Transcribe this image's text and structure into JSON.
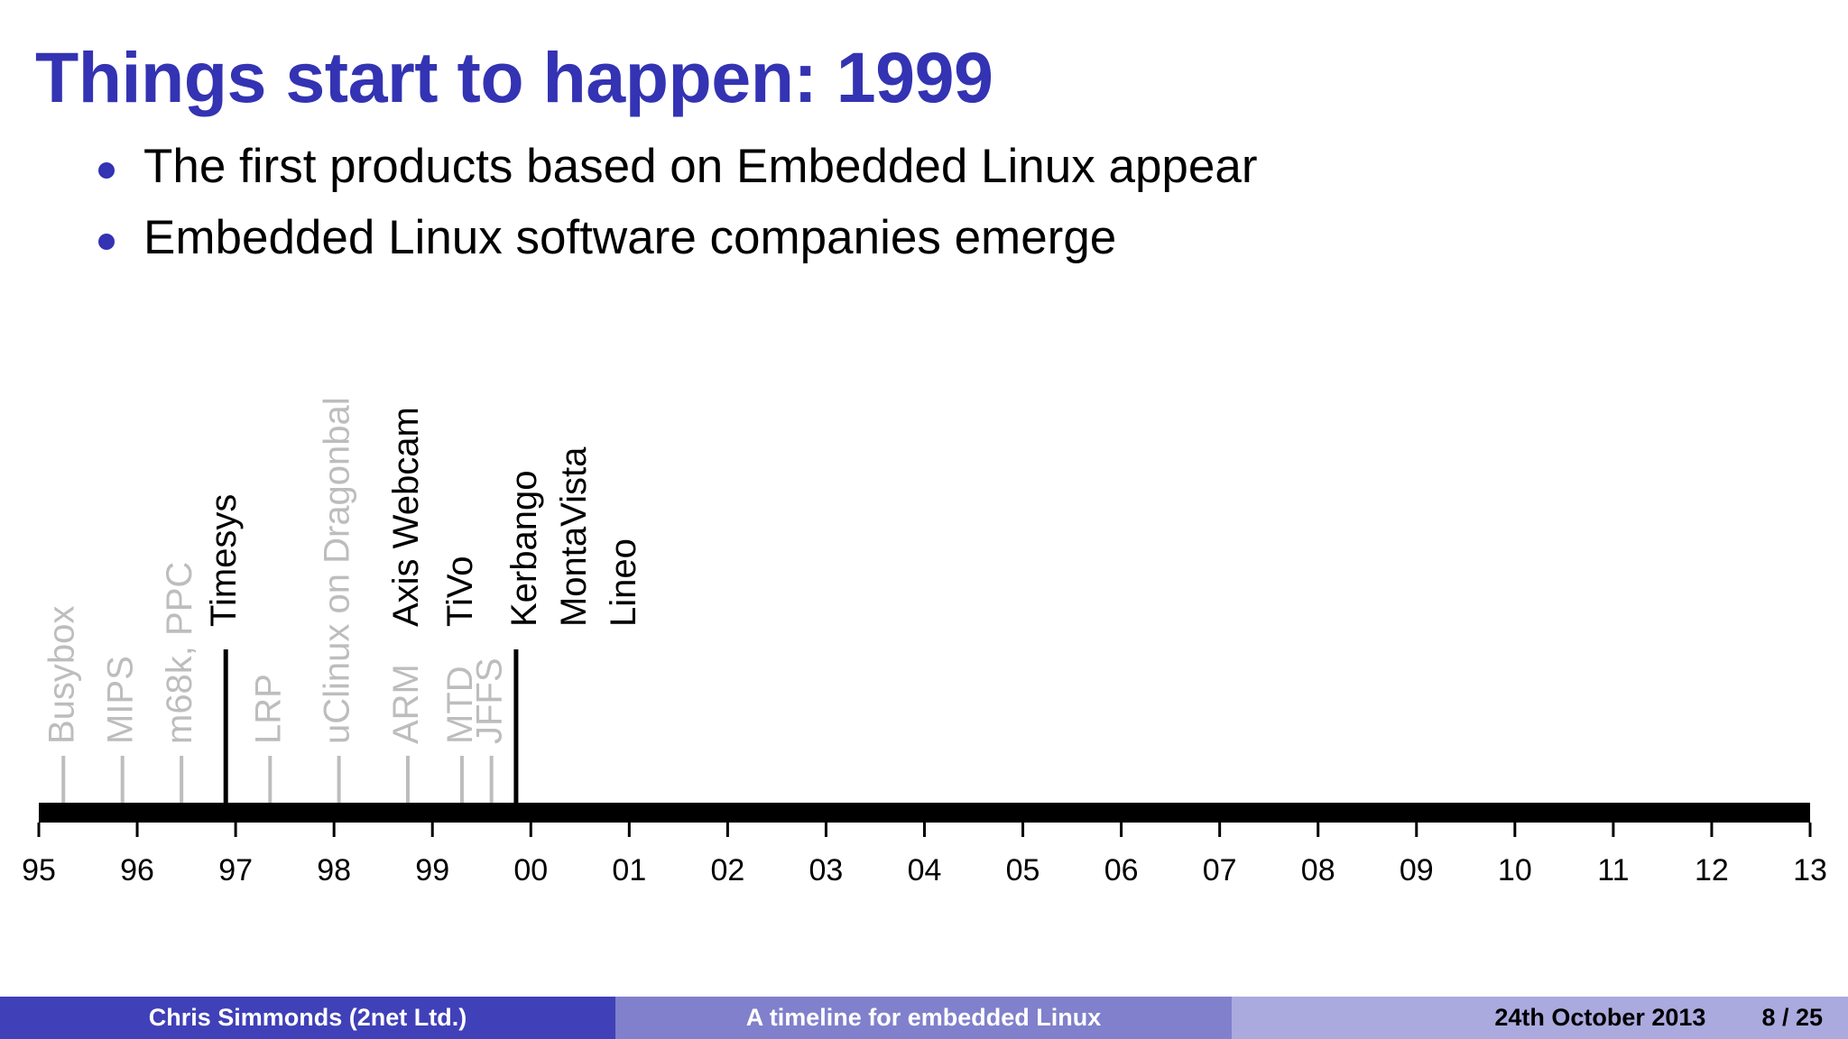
{
  "slide": {
    "title": "Things start to happen: 1999",
    "bullets": [
      "The first products based on Embedded Linux appear",
      "Embedded Linux software companies emerge"
    ]
  },
  "chart_data": {
    "type": "timeline",
    "x_range": [
      1995,
      2013
    ],
    "tick_labels": [
      "95",
      "96",
      "97",
      "98",
      "99",
      "00",
      "01",
      "02",
      "03",
      "04",
      "05",
      "06",
      "07",
      "08",
      "09",
      "10",
      "11",
      "12",
      "13"
    ],
    "events": [
      {
        "year": 1995.25,
        "labels": [
          "Busybox"
        ],
        "highlighted": false
      },
      {
        "year": 1995.85,
        "labels": [
          "MIPS"
        ],
        "highlighted": false
      },
      {
        "year": 1996.45,
        "labels": [
          "m68k, PPC"
        ],
        "highlighted": false
      },
      {
        "year": 1996.9,
        "labels": [
          "Timesys"
        ],
        "highlighted": true
      },
      {
        "year": 1997.35,
        "labels": [
          "LRP"
        ],
        "highlighted": false
      },
      {
        "year": 1998.05,
        "labels": [
          "uClinux on Dragonball"
        ],
        "highlighted": false
      },
      {
        "year": 1998.75,
        "labels": [
          "ARM",
          "Axis Webcam"
        ],
        "highlighted": "upper"
      },
      {
        "year": 1999.3,
        "labels": [
          "MTD",
          "TiVo"
        ],
        "highlighted": "upper"
      },
      {
        "year": 1999.6,
        "labels": [
          "JFFS"
        ],
        "highlighted": false
      },
      {
        "year": 1999.85,
        "labels": [
          "Kerbango",
          "MontaVista",
          "Lineo"
        ],
        "highlighted": true
      }
    ],
    "colors": {
      "highlighted": "#000000",
      "faded": "#bdbdbd"
    }
  },
  "footer": {
    "author": "Chris Simmonds  (2net Ltd.)",
    "talk_title": "A timeline for embedded Linux",
    "date": "24th October 2013",
    "page": "8 / 25"
  }
}
